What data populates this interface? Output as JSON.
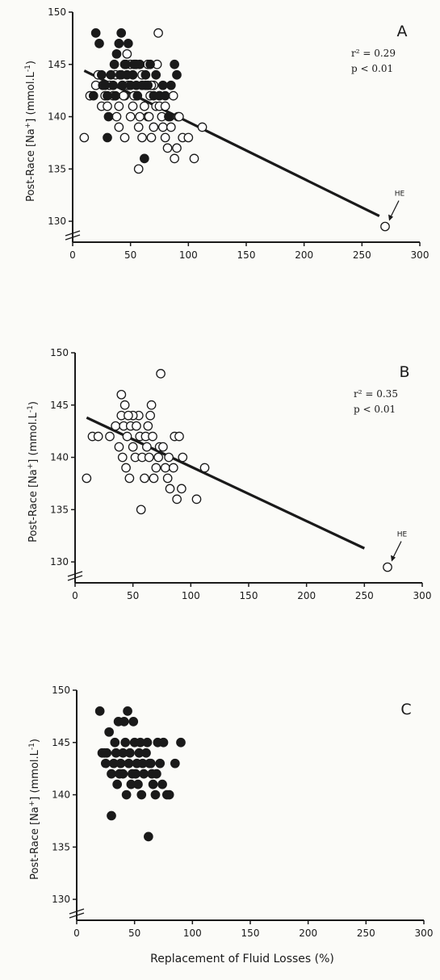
{
  "chart_data": [
    {
      "type": "scatter",
      "panel": "A",
      "ylabel": "Post-Race [Na+] (mmol.L-1)",
      "ylabel_parts": {
        "prefix": "Post-Race [Na",
        "sup1": "+",
        "mid": "] (mmol.L",
        "sup2": "-1",
        "suffix": ")"
      },
      "xlabel": "",
      "xlim": [
        0,
        300
      ],
      "ylim": [
        128,
        150
      ],
      "xticks": [
        "0",
        "50",
        "100",
        "150",
        "200",
        "250",
        "300"
      ],
      "yticks": [
        "130",
        "135",
        "140",
        "145",
        "150"
      ],
      "stats": {
        "r2": "r² = 0.29",
        "p": "p  < 0.01"
      },
      "annotation": {
        "text": "HE",
        "x": 270,
        "y": 129.5
      },
      "regression": {
        "x1": 10,
        "y1": 144.4,
        "x2": 265,
        "y2": 130.5
      },
      "series": [
        {
          "style": "open",
          "points": [
            [
              10,
              138
            ],
            [
              15,
              142
            ],
            [
              20,
              143
            ],
            [
              22,
              144
            ],
            [
              25,
              141
            ],
            [
              28,
              142
            ],
            [
              30,
              141
            ],
            [
              32,
              143
            ],
            [
              35,
              142
            ],
            [
              38,
              140
            ],
            [
              40,
              141
            ],
            [
              42,
              144
            ],
            [
              43,
              143
            ],
            [
              45,
              142
            ],
            [
              48,
              143
            ],
            [
              50,
              140
            ],
            [
              52,
              141
            ],
            [
              55,
              142
            ],
            [
              57,
              139
            ],
            [
              58,
              140
            ],
            [
              60,
              138
            ],
            [
              62,
              141
            ],
            [
              63,
              143
            ],
            [
              65,
              140
            ],
            [
              67,
              142
            ],
            [
              68,
              138
            ],
            [
              70,
              139
            ],
            [
              72,
              141
            ],
            [
              73,
              145
            ],
            [
              74,
              148
            ],
            [
              75,
              141
            ],
            [
              77,
              140
            ],
            [
              78,
              139
            ],
            [
              80,
              138
            ],
            [
              82,
              137
            ],
            [
              84,
              140
            ],
            [
              85,
              139
            ],
            [
              87,
              142
            ],
            [
              88,
              136
            ],
            [
              90,
              137
            ],
            [
              91,
              140
            ],
            [
              92,
              140
            ],
            [
              95,
              138
            ],
            [
              100,
              138
            ],
            [
              105,
              136
            ],
            [
              112,
              139
            ],
            [
              55,
              145
            ],
            [
              47,
              146
            ],
            [
              57,
              135
            ],
            [
              40,
              139
            ],
            [
              45,
              138
            ],
            [
              53,
              142
            ],
            [
              37,
              144
            ],
            [
              65,
              145
            ],
            [
              60,
              144
            ],
            [
              70,
              143
            ],
            [
              75,
              142
            ],
            [
              68,
              143
            ],
            [
              80,
              141
            ],
            [
              50,
              145
            ],
            [
              44,
              142
            ],
            [
              66,
              140
            ],
            [
              270,
              129.5
            ]
          ]
        },
        {
          "style": "filled",
          "points": [
            [
              20,
              148
            ],
            [
              23,
              147
            ],
            [
              25,
              144
            ],
            [
              28,
              143
            ],
            [
              30,
              142
            ],
            [
              31,
              140
            ],
            [
              33,
              144
            ],
            [
              35,
              143
            ],
            [
              36,
              145
            ],
            [
              38,
              146
            ],
            [
              40,
              147
            ],
            [
              41,
              144
            ],
            [
              42,
              148
            ],
            [
              43,
              143
            ],
            [
              45,
              145
            ],
            [
              47,
              144
            ],
            [
              48,
              147
            ],
            [
              50,
              143
            ],
            [
              52,
              144
            ],
            [
              53,
              145
            ],
            [
              55,
              143
            ],
            [
              56,
              142
            ],
            [
              58,
              145
            ],
            [
              60,
              143
            ],
            [
              62,
              136
            ],
            [
              63,
              144
            ],
            [
              65,
              143
            ],
            [
              67,
              145
            ],
            [
              70,
              142
            ],
            [
              72,
              144
            ],
            [
              75,
              142
            ],
            [
              78,
              143
            ],
            [
              80,
              142
            ],
            [
              83,
              140
            ],
            [
              85,
              143
            ],
            [
              88,
              145
            ],
            [
              90,
              144
            ],
            [
              30,
              138
            ],
            [
              18,
              142
            ],
            [
              26,
              143
            ],
            [
              37,
              142
            ],
            [
              46,
              145
            ],
            [
              54,
              145
            ]
          ]
        }
      ]
    },
    {
      "type": "scatter",
      "panel": "B",
      "ylabel": "Post-Race [Na+] (mmol.L-1)",
      "ylabel_parts": {
        "prefix": "Post-Race [Na",
        "sup1": "+",
        "mid": "] (mmol.L",
        "sup2": "-1",
        "suffix": ")"
      },
      "xlabel": "",
      "xlim": [
        0,
        300
      ],
      "ylim": [
        128,
        150
      ],
      "xticks": [
        "0",
        "50",
        "100",
        "150",
        "200",
        "250",
        "300"
      ],
      "yticks": [
        "130",
        "135",
        "140",
        "145",
        "150"
      ],
      "stats": {
        "r2": "r² = 0.35",
        "p": "p  < 0.01"
      },
      "annotation": {
        "text": "HE",
        "x": 270,
        "y": 129.5
      },
      "regression": {
        "x1": 10,
        "y1": 143.8,
        "x2": 250,
        "y2": 131.3
      },
      "series": [
        {
          "style": "open",
          "points": [
            [
              10,
              138
            ],
            [
              15,
              142
            ],
            [
              20,
              142
            ],
            [
              30,
              142
            ],
            [
              35,
              143
            ],
            [
              38,
              141
            ],
            [
              40,
              144
            ],
            [
              40,
              146
            ],
            [
              41,
              140
            ],
            [
              42,
              143
            ],
            [
              43,
              145
            ],
            [
              44,
              139
            ],
            [
              45,
              142
            ],
            [
              47,
              138
            ],
            [
              48,
              143
            ],
            [
              50,
              141
            ],
            [
              52,
              140
            ],
            [
              53,
              143
            ],
            [
              55,
              144
            ],
            [
              56,
              142
            ],
            [
              57,
              135
            ],
            [
              58,
              140
            ],
            [
              60,
              138
            ],
            [
              61,
              142
            ],
            [
              62,
              141
            ],
            [
              63,
              143
            ],
            [
              65,
              144
            ],
            [
              66,
              145
            ],
            [
              67,
              142
            ],
            [
              68,
              138
            ],
            [
              70,
              139
            ],
            [
              72,
              140
            ],
            [
              73,
              141
            ],
            [
              74,
              148
            ],
            [
              76,
              141
            ],
            [
              78,
              139
            ],
            [
              80,
              138
            ],
            [
              81,
              140
            ],
            [
              82,
              137
            ],
            [
              85,
              139
            ],
            [
              86,
              142
            ],
            [
              88,
              136
            ],
            [
              90,
              142
            ],
            [
              92,
              137
            ],
            [
              93,
              140
            ],
            [
              105,
              136
            ],
            [
              112,
              139
            ],
            [
              50,
              144
            ],
            [
              46,
              144
            ],
            [
              64,
              140
            ],
            [
              270,
              129.5
            ]
          ]
        }
      ]
    },
    {
      "type": "scatter",
      "panel": "C",
      "ylabel": "Post-Race [Na+] (mmol.L-1)",
      "ylabel_parts": {
        "prefix": "Post-Race [Na",
        "sup1": "+",
        "mid": "] (mmol.L",
        "sup2": "-1",
        "suffix": ")"
      },
      "xlabel": "Replacement of Fluid Losses (%)",
      "xlim": [
        0,
        300
      ],
      "ylim": [
        128,
        150
      ],
      "xticks": [
        "0",
        "50",
        "100",
        "150",
        "200",
        "250",
        "300"
      ],
      "yticks": [
        "130",
        "135",
        "140",
        "145",
        "150"
      ],
      "series": [
        {
          "style": "filled",
          "points": [
            [
              20,
              148
            ],
            [
              22,
              144
            ],
            [
              25,
              143
            ],
            [
              26,
              144
            ],
            [
              28,
              146
            ],
            [
              30,
              138
            ],
            [
              30,
              142
            ],
            [
              32,
              143
            ],
            [
              33,
              145
            ],
            [
              34,
              144
            ],
            [
              35,
              141
            ],
            [
              36,
              147
            ],
            [
              38,
              143
            ],
            [
              40,
              144
            ],
            [
              40,
              142
            ],
            [
              41,
              147
            ],
            [
              42,
              145
            ],
            [
              43,
              140
            ],
            [
              44,
              148
            ],
            [
              45,
              143
            ],
            [
              46,
              144
            ],
            [
              47,
              141
            ],
            [
              48,
              142
            ],
            [
              49,
              147
            ],
            [
              50,
              145
            ],
            [
              51,
              142
            ],
            [
              52,
              143
            ],
            [
              53,
              141
            ],
            [
              55,
              145
            ],
            [
              56,
              140
            ],
            [
              57,
              143
            ],
            [
              58,
              142
            ],
            [
              60,
              144
            ],
            [
              61,
              145
            ],
            [
              62,
              136
            ],
            [
              63,
              143
            ],
            [
              65,
              142
            ],
            [
              66,
              141
            ],
            [
              68,
              140
            ],
            [
              70,
              145
            ],
            [
              72,
              143
            ],
            [
              74,
              141
            ],
            [
              75,
              145
            ],
            [
              78,
              140
            ],
            [
              80,
              140
            ],
            [
              85,
              143
            ],
            [
              90,
              145
            ],
            [
              24,
              144
            ],
            [
              37,
              142
            ],
            [
              54,
              144
            ],
            [
              64,
              143
            ],
            [
              69,
              142
            ]
          ]
        }
      ]
    }
  ]
}
